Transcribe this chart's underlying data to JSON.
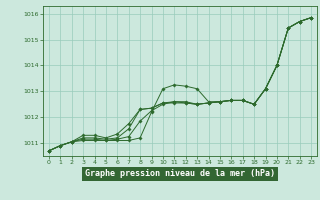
{
  "title": "Graphe pression niveau de la mer (hPa)",
  "background_color": "#cce8dd",
  "grid_color": "#99ccbb",
  "line_color": "#2d6a2d",
  "label_bg": "#336633",
  "xlim": [
    -0.5,
    23.5
  ],
  "ylim": [
    1010.5,
    1016.3
  ],
  "yticks": [
    1011,
    1012,
    1013,
    1014,
    1015,
    1016
  ],
  "xticks": [
    0,
    1,
    2,
    3,
    4,
    5,
    6,
    7,
    8,
    9,
    10,
    11,
    12,
    13,
    14,
    15,
    16,
    17,
    18,
    19,
    20,
    21,
    22,
    23
  ],
  "series": [
    {
      "x": [
        0,
        1,
        2,
        3,
        4,
        5,
        6,
        7,
        8,
        9,
        10,
        11,
        12,
        13,
        14,
        15,
        16,
        17,
        18,
        19,
        20,
        21,
        22,
        23
      ],
      "y": [
        1010.7,
        1010.9,
        1011.05,
        1011.1,
        1011.1,
        1011.1,
        1011.1,
        1011.1,
        1011.2,
        1012.2,
        1013.1,
        1013.25,
        1013.2,
        1013.1,
        1012.6,
        1012.6,
        1012.65,
        1012.65,
        1012.5,
        1013.1,
        1014.0,
        1015.45,
        1015.7,
        1015.85
      ]
    },
    {
      "x": [
        0,
        1,
        2,
        3,
        4,
        5,
        6,
        7,
        8,
        9,
        10,
        11,
        12,
        13,
        14,
        15,
        16,
        17,
        18,
        19,
        20,
        21,
        22,
        23
      ],
      "y": [
        1010.7,
        1010.9,
        1011.05,
        1011.15,
        1011.15,
        1011.1,
        1011.15,
        1011.25,
        1011.85,
        1012.25,
        1012.5,
        1012.6,
        1012.6,
        1012.5,
        1012.55,
        1012.6,
        1012.65,
        1012.65,
        1012.5,
        1013.1,
        1014.0,
        1015.45,
        1015.7,
        1015.85
      ]
    },
    {
      "x": [
        0,
        1,
        2,
        3,
        4,
        5,
        6,
        7,
        8,
        9,
        10,
        11,
        12,
        13,
        14,
        15,
        16,
        17,
        18,
        19,
        20,
        21,
        22,
        23
      ],
      "y": [
        1010.7,
        1010.9,
        1011.05,
        1011.2,
        1011.2,
        1011.15,
        1011.2,
        1011.55,
        1012.3,
        1012.35,
        1012.55,
        1012.6,
        1012.55,
        1012.5,
        1012.55,
        1012.6,
        1012.65,
        1012.65,
        1012.5,
        1013.1,
        1014.0,
        1015.45,
        1015.7,
        1015.85
      ]
    },
    {
      "x": [
        0,
        1,
        2,
        3,
        4,
        5,
        6,
        7,
        8,
        9,
        10,
        11,
        12,
        13,
        14,
        15,
        16,
        17,
        18,
        19,
        20,
        21,
        22,
        23
      ],
      "y": [
        1010.7,
        1010.9,
        1011.05,
        1011.3,
        1011.3,
        1011.2,
        1011.35,
        1011.75,
        1012.3,
        1012.35,
        1012.55,
        1012.55,
        1012.55,
        1012.5,
        1012.55,
        1012.6,
        1012.65,
        1012.65,
        1012.5,
        1013.1,
        1014.0,
        1015.45,
        1015.7,
        1015.85
      ]
    }
  ]
}
